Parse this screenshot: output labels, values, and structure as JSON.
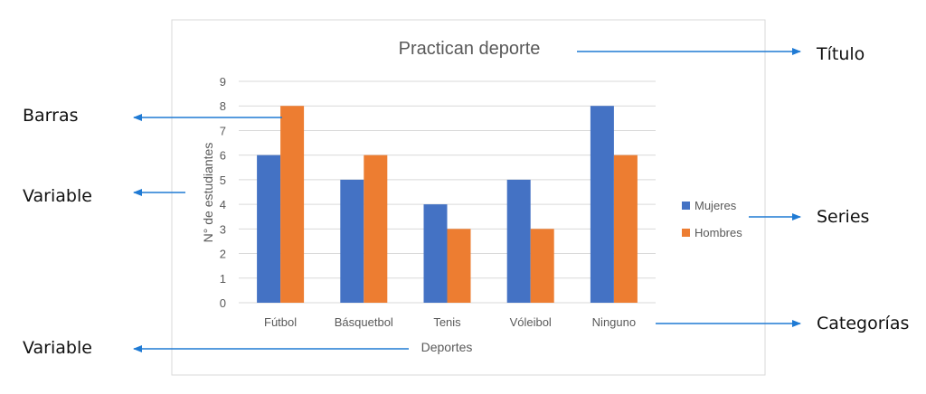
{
  "chart_data": {
    "type": "bar",
    "title": "Practican deporte",
    "xlabel": "Deportes",
    "ylabel": "N° de estudiantes",
    "categories": [
      "Fútbol",
      "Básquetbol",
      "Tenis",
      "Vóleibol",
      "Ninguno"
    ],
    "series": [
      {
        "name": "Mujeres",
        "values": [
          6,
          5,
          4,
          5,
          8
        ],
        "color": "#4472c4"
      },
      {
        "name": "Hombres",
        "values": [
          8,
          6,
          3,
          3,
          6
        ],
        "color": "#ed7d31"
      }
    ],
    "ylim": [
      0,
      9
    ],
    "yticks": [
      "0",
      "1",
      "2",
      "3",
      "4",
      "5",
      "6",
      "7",
      "8",
      "9"
    ],
    "grid": true,
    "legend": "right"
  },
  "annotations": {
    "titulo": "Título",
    "barras": "Barras",
    "variable_y": "Variable",
    "series": "Series",
    "categorias": "Categorías",
    "variable_x": "Variable",
    "arrow_color": "#1f7ad4"
  }
}
